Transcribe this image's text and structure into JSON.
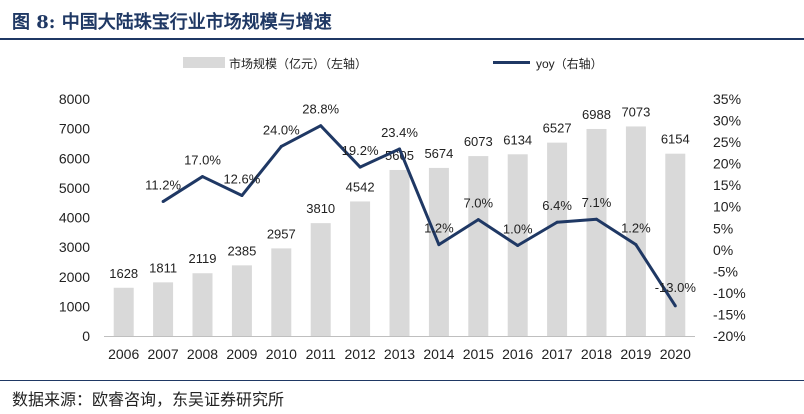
{
  "header": {
    "title": "图 8:  中国大陆珠宝行业市场规模与增速"
  },
  "footer": {
    "source": "数据来源：欧睿咨询，东吴证券研究所"
  },
  "colors": {
    "bar": "#d9d9d9",
    "line": "#1f3864",
    "text": "#222222",
    "title": "#1f3864"
  },
  "chart_data": {
    "type": "bar+line",
    "title": "",
    "categories": [
      "2006",
      "2007",
      "2008",
      "2009",
      "2010",
      "2011",
      "2012",
      "2013",
      "2014",
      "2015",
      "2016",
      "2017",
      "2018",
      "2019",
      "2020"
    ],
    "series": [
      {
        "name": "市场规模（亿元）（左轴）",
        "type": "bar",
        "axis": "left",
        "values": [
          1628,
          1811,
          2119,
          2385,
          2957,
          3810,
          4542,
          5605,
          5674,
          6073,
          6134,
          6527,
          6988,
          7073,
          6154
        ],
        "labels": [
          "1628",
          "1811",
          "2119",
          "2385",
          "2957",
          "3810",
          "4542",
          "5605",
          "5674",
          "6073",
          "6134",
          "6527",
          "6988",
          "7073",
          "6154"
        ]
      },
      {
        "name": "yoy（右轴）",
        "type": "line",
        "axis": "right",
        "values": [
          null,
          11.2,
          17.0,
          12.6,
          24.0,
          28.8,
          19.2,
          23.4,
          1.2,
          7.0,
          1.0,
          6.4,
          7.1,
          1.2,
          -13.0
        ],
        "labels": [
          "",
          "11.2%",
          "17.0%",
          "12.6%",
          "24.0%",
          "28.8%",
          "19.2%",
          "23.4%",
          "1.2%",
          "7.0%",
          "1.0%",
          "6.4%",
          "7.1%",
          "1.2%",
          "-13.0%"
        ]
      }
    ],
    "left_axis": {
      "ylim": [
        0,
        8000
      ],
      "ticks": [
        "0",
        "1000",
        "2000",
        "3000",
        "4000",
        "5000",
        "6000",
        "7000",
        "8000"
      ]
    },
    "right_axis": {
      "ylim": [
        -20,
        35
      ],
      "ticks": [
        "-20%",
        "-15%",
        "-10%",
        "-5%",
        "0%",
        "5%",
        "10%",
        "15%",
        "20%",
        "25%",
        "30%",
        "35%"
      ]
    },
    "legend": {
      "position": "top"
    }
  }
}
